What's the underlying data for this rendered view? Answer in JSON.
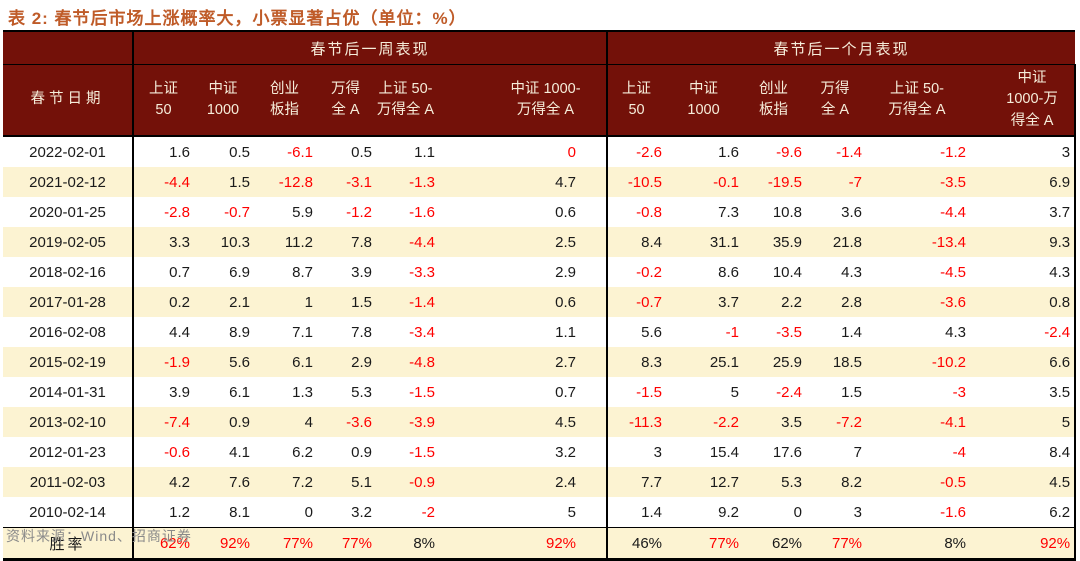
{
  "title": "表 2: 春节后市场上涨概率大，小票显著占优（单位：%）",
  "source": "资料来源：Wind、招商证券",
  "accent_colors": {
    "header_background": "#731109",
    "header_text": "#F6EDDA",
    "stripe_background": "#FCF3D2",
    "negative_value": "#FF0000",
    "title_text": "#BF5B28"
  },
  "table": {
    "date_header": "春节日期",
    "group_week": "春节后一周表现",
    "group_month": "春节后一个月表现",
    "week_cols": [
      "上证\n50",
      "中证\n1000",
      "创业\n板指",
      "万得\n全 A",
      "上证 50-\n万得全 A",
      "中证 1000-\n万得全 A"
    ],
    "month_cols": [
      "上证\n50",
      "中证\n1000",
      "创业\n板指",
      "万得\n全 A",
      "上证 50-\n万得全 A",
      "中证\n1000-万\n得全 A"
    ],
    "rows": [
      {
        "date": "2022-02-01",
        "week": [
          "1.6",
          "0.5",
          "-6.1",
          "0.5",
          "1.1",
          "0"
        ],
        "red_week": [
          0,
          0,
          1,
          0,
          0,
          1
        ],
        "month": [
          "-2.6",
          "1.6",
          "-9.6",
          "-1.4",
          "-1.2",
          "3"
        ],
        "red_month": [
          1,
          0,
          1,
          1,
          1,
          0
        ]
      },
      {
        "date": "2021-02-12",
        "week": [
          "-4.4",
          "1.5",
          "-12.8",
          "-3.1",
          "-1.3",
          "4.7"
        ],
        "red_week": [
          1,
          0,
          1,
          1,
          1,
          0
        ],
        "month": [
          "-10.5",
          "-0.1",
          "-19.5",
          "-7",
          "-3.5",
          "6.9"
        ],
        "red_month": [
          1,
          1,
          1,
          1,
          1,
          0
        ]
      },
      {
        "date": "2020-01-25",
        "week": [
          "-2.8",
          "-0.7",
          "5.9",
          "-1.2",
          "-1.6",
          "0.6"
        ],
        "red_week": [
          1,
          1,
          0,
          1,
          1,
          0
        ],
        "month": [
          "-0.8",
          "7.3",
          "10.8",
          "3.6",
          "-4.4",
          "3.7"
        ],
        "red_month": [
          1,
          0,
          0,
          0,
          1,
          0
        ]
      },
      {
        "date": "2019-02-05",
        "week": [
          "3.3",
          "10.3",
          "11.2",
          "7.8",
          "-4.4",
          "2.5"
        ],
        "red_week": [
          0,
          0,
          0,
          0,
          1,
          0
        ],
        "month": [
          "8.4",
          "31.1",
          "35.9",
          "21.8",
          "-13.4",
          "9.3"
        ],
        "red_month": [
          0,
          0,
          0,
          0,
          1,
          0
        ]
      },
      {
        "date": "2018-02-16",
        "week": [
          "0.7",
          "6.9",
          "8.7",
          "3.9",
          "-3.3",
          "2.9"
        ],
        "red_week": [
          0,
          0,
          0,
          0,
          1,
          0
        ],
        "month": [
          "-0.2",
          "8.6",
          "10.4",
          "4.3",
          "-4.5",
          "4.3"
        ],
        "red_month": [
          1,
          0,
          0,
          0,
          1,
          0
        ]
      },
      {
        "date": "2017-01-28",
        "week": [
          "0.2",
          "2.1",
          "1",
          "1.5",
          "-1.4",
          "0.6"
        ],
        "red_week": [
          0,
          0,
          0,
          0,
          1,
          0
        ],
        "month": [
          "-0.7",
          "3.7",
          "2.2",
          "2.8",
          "-3.6",
          "0.8"
        ],
        "red_month": [
          1,
          0,
          0,
          0,
          1,
          0
        ]
      },
      {
        "date": "2016-02-08",
        "week": [
          "4.4",
          "8.9",
          "7.1",
          "7.8",
          "-3.4",
          "1.1"
        ],
        "red_week": [
          0,
          0,
          0,
          0,
          1,
          0
        ],
        "month": [
          "5.6",
          "-1",
          "-3.5",
          "1.4",
          "4.3",
          "-2.4"
        ],
        "red_month": [
          0,
          1,
          1,
          0,
          0,
          1
        ]
      },
      {
        "date": "2015-02-19",
        "week": [
          "-1.9",
          "5.6",
          "6.1",
          "2.9",
          "-4.8",
          "2.7"
        ],
        "red_week": [
          1,
          0,
          0,
          0,
          1,
          0
        ],
        "month": [
          "8.3",
          "25.1",
          "25.9",
          "18.5",
          "-10.2",
          "6.6"
        ],
        "red_month": [
          0,
          0,
          0,
          0,
          1,
          0
        ]
      },
      {
        "date": "2014-01-31",
        "week": [
          "3.9",
          "6.1",
          "1.3",
          "5.3",
          "-1.5",
          "0.7"
        ],
        "red_week": [
          0,
          0,
          0,
          0,
          1,
          0
        ],
        "month": [
          "-1.5",
          "5",
          "-2.4",
          "1.5",
          "-3",
          "3.5"
        ],
        "red_month": [
          1,
          0,
          1,
          0,
          1,
          0
        ]
      },
      {
        "date": "2013-02-10",
        "week": [
          "-7.4",
          "0.9",
          "4",
          "-3.6",
          "-3.9",
          "4.5"
        ],
        "red_week": [
          1,
          0,
          0,
          1,
          1,
          0
        ],
        "month": [
          "-11.3",
          "-2.2",
          "3.5",
          "-7.2",
          "-4.1",
          "5"
        ],
        "red_month": [
          1,
          1,
          0,
          1,
          1,
          0
        ]
      },
      {
        "date": "2012-01-23",
        "week": [
          "-0.6",
          "4.1",
          "6.2",
          "0.9",
          "-1.5",
          "3.2"
        ],
        "red_week": [
          1,
          0,
          0,
          0,
          1,
          0
        ],
        "month": [
          "3",
          "15.4",
          "17.6",
          "7",
          "-4",
          "8.4"
        ],
        "red_month": [
          0,
          0,
          0,
          0,
          1,
          0
        ]
      },
      {
        "date": "2011-02-03",
        "week": [
          "4.2",
          "7.6",
          "7.2",
          "5.1",
          "-0.9",
          "2.4"
        ],
        "red_week": [
          0,
          0,
          0,
          0,
          1,
          0
        ],
        "month": [
          "7.7",
          "12.7",
          "5.3",
          "8.2",
          "-0.5",
          "4.5"
        ],
        "red_month": [
          0,
          0,
          0,
          0,
          1,
          0
        ]
      },
      {
        "date": "2010-02-14",
        "week": [
          "1.2",
          "8.1",
          "0",
          "3.2",
          "-2",
          "5"
        ],
        "red_week": [
          0,
          0,
          0,
          0,
          1,
          0
        ],
        "month": [
          "1.4",
          "9.2",
          "0",
          "3",
          "-1.6",
          "6.2"
        ],
        "red_month": [
          0,
          0,
          0,
          0,
          1,
          0
        ]
      }
    ],
    "win_rate": {
      "label": "胜率",
      "week": [
        "62%",
        "92%",
        "77%",
        "77%",
        "8%",
        "92%"
      ],
      "red_week": [
        1,
        1,
        1,
        1,
        0,
        1
      ],
      "month": [
        "46%",
        "77%",
        "62%",
        "77%",
        "8%",
        "92%"
      ],
      "red_month": [
        0,
        1,
        0,
        1,
        0,
        1
      ]
    }
  }
}
